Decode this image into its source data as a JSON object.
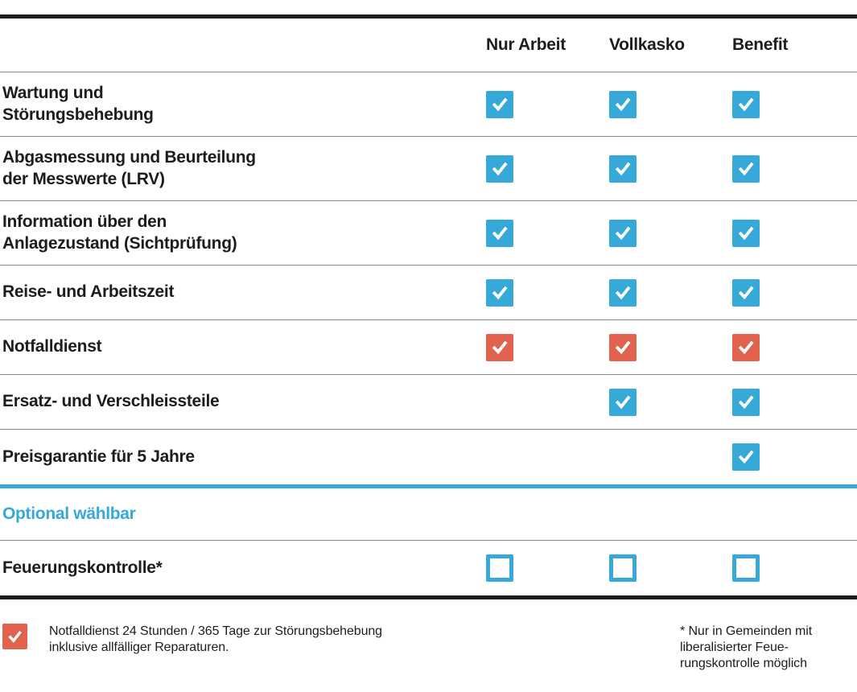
{
  "colors": {
    "blue": "#36a9d9",
    "red": "#e2634d",
    "text": "#1d1d1b",
    "line_gray": "#8a8a8a"
  },
  "table": {
    "columns": [
      {
        "label": "Nur Arbeit"
      },
      {
        "label": "Vollkasko"
      },
      {
        "label": "Benefit"
      }
    ],
    "rows": [
      {
        "label": "Wartung und\nStörungsbehebung",
        "checks": [
          "blue",
          "blue",
          "blue"
        ]
      },
      {
        "label": "Abgasmessung und Beurteilung\nder Messwerte (LRV)",
        "checks": [
          "blue",
          "blue",
          "blue"
        ]
      },
      {
        "label": "Information über den\nAnlagezustand (Sichtprüfung)",
        "checks": [
          "blue",
          "blue",
          "blue"
        ]
      },
      {
        "label": "Reise- und Arbeitszeit",
        "checks": [
          "blue",
          "blue",
          "blue"
        ]
      },
      {
        "label": "Notfalldienst",
        "checks": [
          "red",
          "red",
          "red"
        ]
      },
      {
        "label": "Ersatz- und Verschleissteile",
        "checks": [
          "none",
          "blue",
          "blue"
        ]
      },
      {
        "label": "Preisgarantie für 5 Jahre",
        "checks": [
          "none",
          "none",
          "blue"
        ]
      }
    ],
    "optional_section": {
      "title": "Optional wählbar",
      "rows": [
        {
          "label": "Feuerungskontrolle*",
          "checks": [
            "empty",
            "empty",
            "empty"
          ]
        }
      ]
    }
  },
  "footnotes": {
    "left": {
      "icon": "red-check",
      "text": "Notfalldienst 24 Stunden / 365 Tage zur Störungsbehebung\ninklusive allfälliger Reparaturen."
    },
    "right": {
      "text": "* Nur in Gemeinden mit\nliberalisierter Feue-\nrungskontrolle möglich"
    }
  }
}
